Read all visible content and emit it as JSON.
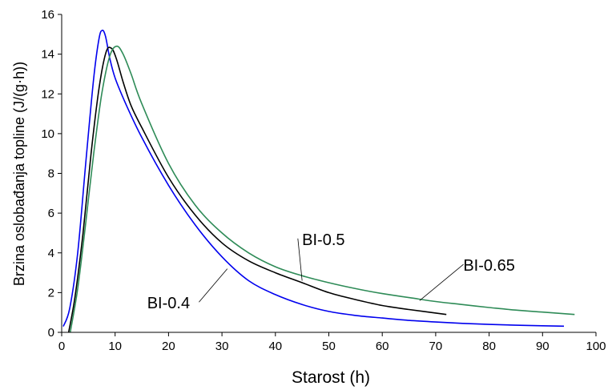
{
  "chart_data": {
    "type": "line",
    "xlabel": "Starost (h)",
    "ylabel": "Brzina oslobađanja topline (J/(g·h))",
    "xlim": [
      0,
      100
    ],
    "ylim": [
      0,
      16
    ],
    "x_ticks": [
      0,
      10,
      20,
      30,
      40,
      50,
      60,
      70,
      80,
      90,
      100
    ],
    "y_ticks": [
      0,
      2,
      4,
      6,
      8,
      10,
      12,
      14,
      16
    ],
    "grid": false,
    "legend": "none",
    "series": [
      {
        "name": "BI-0.4",
        "color": "#0000ee",
        "x": [
          0.3,
          1.5,
          3,
          4.5,
          6,
          7,
          7.6,
          8.2,
          9,
          10,
          12,
          15,
          20,
          25,
          30,
          35,
          40,
          45,
          50,
          55,
          60,
          65,
          70,
          75,
          80,
          85,
          90,
          94
        ],
        "y": [
          0.3,
          1.2,
          4.0,
          8.5,
          12.8,
          14.8,
          15.2,
          14.9,
          13.8,
          12.8,
          11.5,
          9.8,
          7.4,
          5.4,
          3.8,
          2.6,
          1.9,
          1.4,
          1.05,
          0.85,
          0.72,
          0.6,
          0.52,
          0.45,
          0.4,
          0.36,
          0.33,
          0.31
        ]
      },
      {
        "name": "BI-0.5",
        "color": "#000000",
        "x": [
          1.3,
          2.5,
          4,
          5.5,
          7,
          8.3,
          9.3,
          10.2,
          11.5,
          13,
          15,
          20,
          25,
          30,
          35,
          40,
          45,
          50,
          55,
          60,
          65,
          72
        ],
        "y": [
          0,
          1.8,
          5.0,
          9.0,
          12.3,
          14.1,
          14.3,
          13.8,
          12.6,
          11.4,
          10.3,
          7.8,
          5.9,
          4.5,
          3.6,
          3.0,
          2.5,
          2.0,
          1.65,
          1.35,
          1.15,
          0.9
        ]
      },
      {
        "name": "BI-0.65",
        "color": "#2e8b57",
        "x": [
          1.6,
          3,
          4.5,
          6,
          7.5,
          9,
          10.3,
          11.5,
          13,
          15,
          20,
          25,
          30,
          35,
          40,
          45,
          50,
          55,
          60,
          65,
          70,
          75,
          80,
          85,
          90,
          96
        ],
        "y": [
          0,
          2.2,
          5.5,
          9.0,
          12.0,
          13.9,
          14.4,
          14.0,
          13.0,
          11.5,
          8.5,
          6.4,
          5.0,
          4.0,
          3.3,
          2.85,
          2.5,
          2.2,
          1.95,
          1.75,
          1.55,
          1.4,
          1.25,
          1.12,
          1.02,
          0.9
        ]
      }
    ],
    "annotations": [
      {
        "text": "BI-0.4",
        "text_at": [
          20,
          1.2
        ],
        "point_at": [
          31,
          3.2
        ]
      },
      {
        "text": "BI-0.5",
        "text_at": [
          49,
          4.4
        ],
        "point_at": [
          45,
          2.6
        ]
      },
      {
        "text": "BI-0.65",
        "text_at": [
          80,
          3.1
        ],
        "point_at": [
          67,
          1.6
        ]
      }
    ]
  }
}
